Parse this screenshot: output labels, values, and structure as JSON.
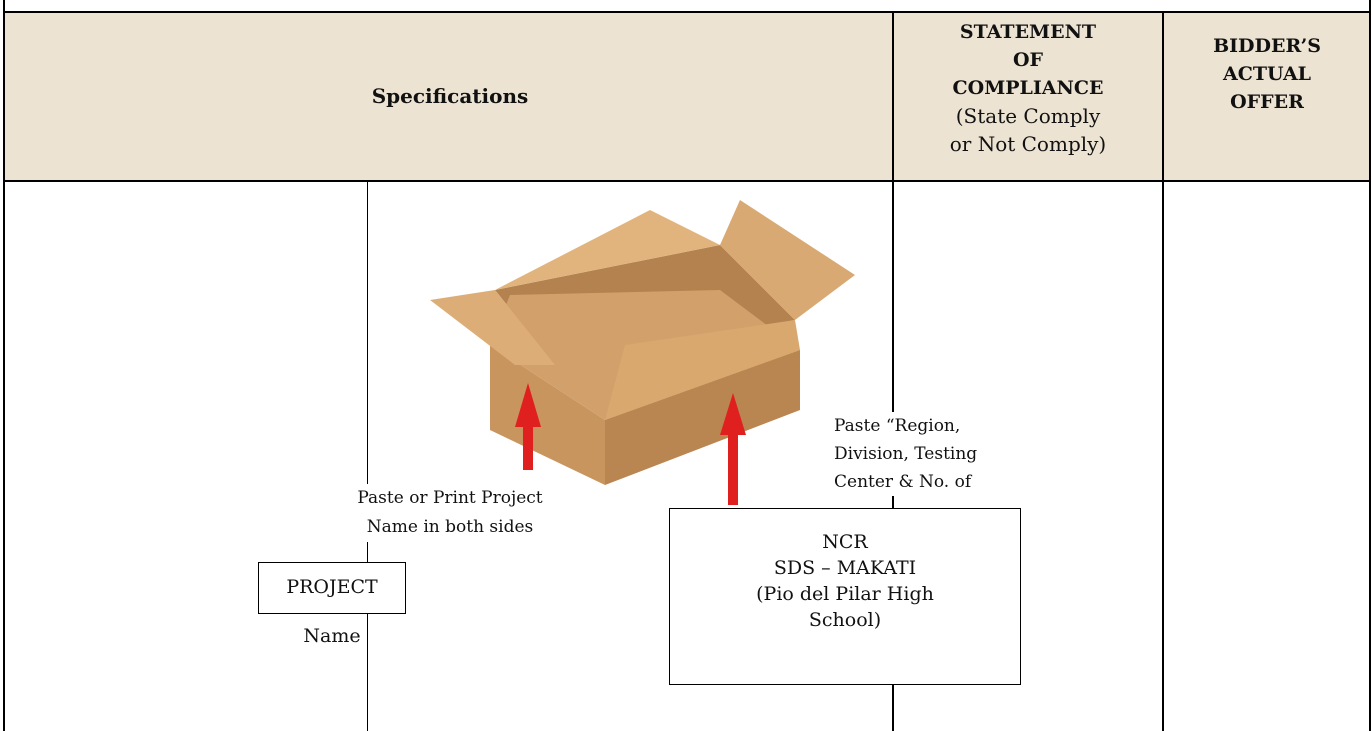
{
  "header": {
    "specifications": "Specifications",
    "compliance": [
      "STATEMENT",
      "OF",
      "COMPLIANCE"
    ],
    "compliance_note": [
      "(State Comply",
      "or Not Comply)"
    ],
    "offer": [
      "BIDDER’S",
      "ACTUAL",
      "OFFER"
    ]
  },
  "body": {
    "project_note": [
      "Paste or Print Project",
      "Name in both sides"
    ],
    "project_label": "PROJECT Name",
    "region_note": [
      "Paste “Region,",
      "Division, Testing",
      "Center & No. of"
    ],
    "region_label": [
      "NCR",
      "SDS – MAKATI",
      "(Pio del Pilar High",
      "School)"
    ]
  }
}
